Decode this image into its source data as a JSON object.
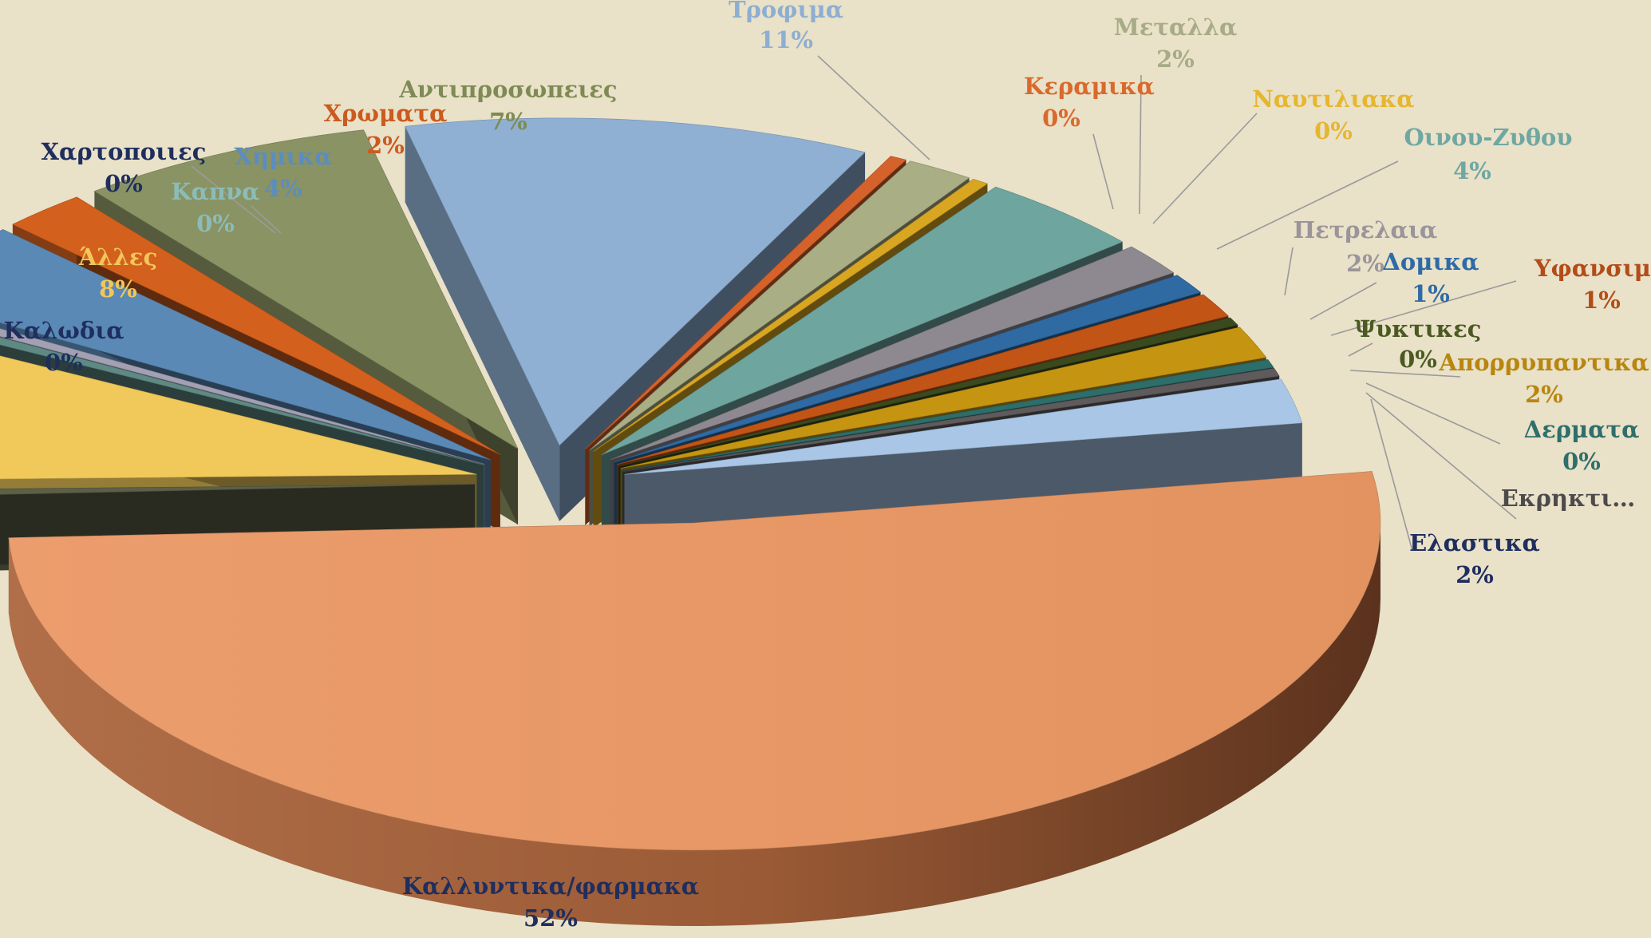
{
  "chart_data": {
    "type": "pie",
    "exploded": true,
    "three_d": true,
    "title": "",
    "legend": "none",
    "slices": [
      {
        "label": "Τροφιμα",
        "value_label": "11%",
        "value": 11,
        "color": "#8fb0d3",
        "label_color": "#8eaed1"
      },
      {
        "label": "Κεραμικα",
        "value_label": "0%",
        "value": 0.4,
        "color": "#d4622a",
        "label_color": "#d9692c"
      },
      {
        "label": "Μεταλλα",
        "value_label": "2%",
        "value": 1.6,
        "color": "#a9ae84",
        "label_color": "#a7ab86"
      },
      {
        "label": "Ναυτιλιακα",
        "value_label": "0%",
        "value": 0.4,
        "color": "#d9a622",
        "label_color": "#e6b62f"
      },
      {
        "label": "Οινου-Ζυθου",
        "value_label": "4%",
        "value": 4,
        "color": "#6fa59f",
        "label_color": "#6fa7a2"
      },
      {
        "label": "Πετρελαια",
        "value_label": "2%",
        "value": 1.6,
        "color": "#8e8990",
        "label_color": "#9a959a"
      },
      {
        "label": "Δομικα",
        "value_label": "1%",
        "value": 1,
        "color": "#2f6aa3",
        "label_color": "#2e6ba6"
      },
      {
        "label": "Υφανσιμα",
        "value_label": "1%",
        "value": 1.2,
        "color": "#c25416",
        "label_color": "#b34d18"
      },
      {
        "label": "Ψυκτικες",
        "value_label": "0%",
        "value": 0.4,
        "color": "#3b4a1e",
        "label_color": "#4a5a22"
      },
      {
        "label": "Απορρυπαντικα",
        "value_label": "2%",
        "value": 1.6,
        "color": "#c59512",
        "label_color": "#b8860f"
      },
      {
        "label": "Δερματα",
        "value_label": "0%",
        "value": 0.4,
        "color": "#2d6d6a",
        "label_color": "#2e6e6b"
      },
      {
        "label": "Εκρηκτι…",
        "value_label": "",
        "value": 0.4,
        "color": "#5f5a5c",
        "label_color": "#4d4a4c"
      },
      {
        "label": "Ελαστικα",
        "value_label": "2%",
        "value": 2.2,
        "color": "#a9c6e6",
        "label_color": "#1f2e5e"
      },
      {
        "label": "Καλλυντικα/φαρμακα",
        "value_label": "52%",
        "value": 52,
        "color": "#e59a6b",
        "label_color": "#1f2e5e"
      },
      {
        "label": "Καλωδια",
        "value_label": "0%",
        "value": 0.4,
        "color": "#5b6047",
        "label_color": "#1f2e5e"
      },
      {
        "label": "Άλλες",
        "value_label": "8%",
        "value": 8,
        "color": "#f0c95a",
        "label_color": "#f1c75a"
      },
      {
        "label": "Καπνα",
        "value_label": "0%",
        "value": 0.4,
        "color": "#5f8a84",
        "label_color": "#8cbcb7"
      },
      {
        "label": "Χαρτοποιιες",
        "value_label": "0%",
        "value": 0.4,
        "color": "#a3a0b4",
        "label_color": "#1f2e5e"
      },
      {
        "label": "Χημικα",
        "value_label": "4%",
        "value": 4,
        "color": "#5a89b6",
        "label_color": "#5a8dc0"
      },
      {
        "label": "Χρωματα",
        "value_label": "2%",
        "value": 2,
        "color": "#d4601e",
        "label_color": "#cc5a1e"
      },
      {
        "label": "Αντιπροσωπειες",
        "value_label": "7%",
        "value": 7,
        "color": "#8a9363",
        "label_color": "#7f8a55"
      }
    ]
  }
}
